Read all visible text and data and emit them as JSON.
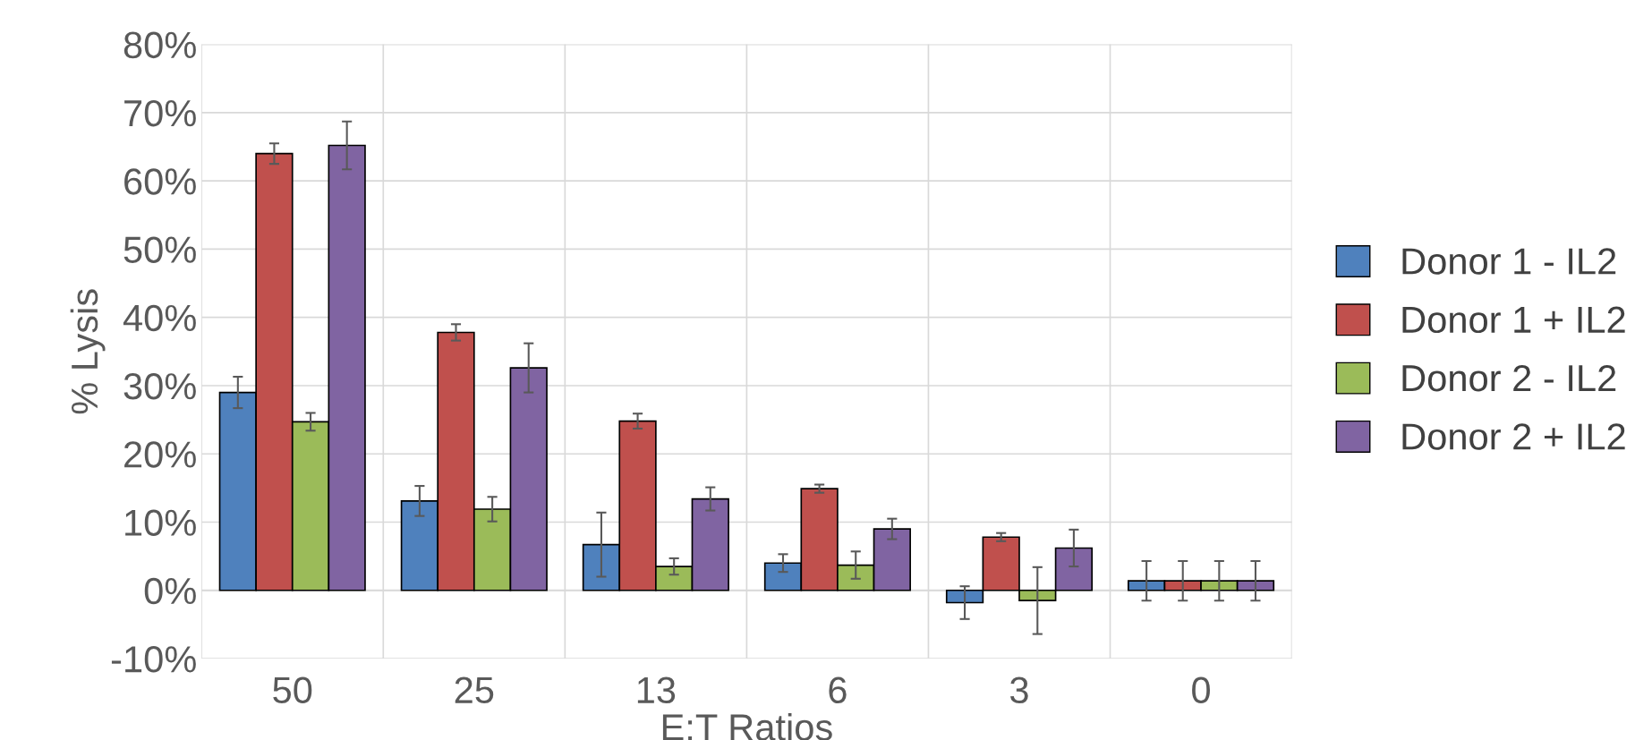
{
  "chart_data": {
    "type": "bar",
    "xlabel": "E:T Ratios",
    "ylabel": "% Lysis",
    "categories": [
      "50",
      "25",
      "13",
      "6",
      "3",
      "0"
    ],
    "series": [
      {
        "name": "Donor 1 - IL2",
        "color": "#4f81bd",
        "values": [
          29.0,
          13.1,
          6.7,
          4.0,
          -1.8,
          1.4
        ],
        "errors": [
          2.3,
          2.2,
          4.7,
          1.3,
          2.4,
          2.9
        ]
      },
      {
        "name": "Donor 1 + IL2",
        "color": "#c0504d",
        "values": [
          64.0,
          37.8,
          24.8,
          14.9,
          7.8,
          1.4
        ],
        "errors": [
          1.5,
          1.2,
          1.1,
          0.6,
          0.6,
          2.9
        ]
      },
      {
        "name": "Donor 2 - IL2",
        "color": "#9bbb59",
        "values": [
          24.7,
          11.9,
          3.5,
          3.7,
          -1.5,
          1.4
        ],
        "errors": [
          1.3,
          1.8,
          1.2,
          2.0,
          4.9,
          2.9
        ]
      },
      {
        "name": "Donor 2 + IL2",
        "color": "#8064a2",
        "values": [
          65.2,
          32.6,
          13.4,
          9.0,
          6.2,
          1.4
        ],
        "errors": [
          3.5,
          3.6,
          1.7,
          1.5,
          2.7,
          2.9
        ]
      }
    ],
    "ylim": [
      -10,
      80
    ],
    "yticks": [
      {
        "value": -10,
        "label": "-10%"
      },
      {
        "value": 0,
        "label": "0%"
      },
      {
        "value": 10,
        "label": "10%"
      },
      {
        "value": 20,
        "label": "20%"
      },
      {
        "value": 30,
        "label": "30%"
      },
      {
        "value": 40,
        "label": "40%"
      },
      {
        "value": 50,
        "label": "50%"
      },
      {
        "value": 60,
        "label": "60%"
      },
      {
        "value": 70,
        "label": "70%"
      },
      {
        "value": 80,
        "label": "80%"
      }
    ],
    "grid": true,
    "legend": "right"
  }
}
